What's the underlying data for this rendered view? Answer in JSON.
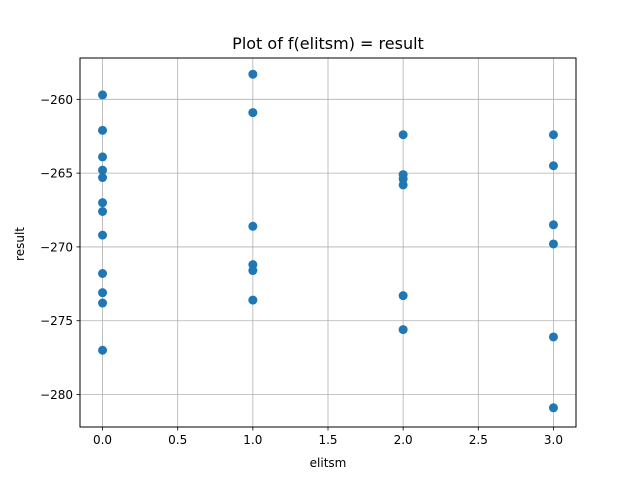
{
  "chart_data": {
    "type": "scatter",
    "title": "Plot of f(elitsm) = result",
    "xlabel": "elitsm",
    "ylabel": "result",
    "xlim": [
      -0.15,
      3.15
    ],
    "ylim": [
      -282.2,
      -257.2
    ],
    "xticks": [
      0.0,
      0.5,
      1.0,
      1.5,
      2.0,
      2.5,
      3.0
    ],
    "xtick_labels": [
      "0.0",
      "0.5",
      "1.0",
      "1.5",
      "2.0",
      "2.5",
      "3.0"
    ],
    "yticks": [
      -260,
      -265,
      -270,
      -275,
      -280
    ],
    "ytick_labels": [
      "−260",
      "−265",
      "−270",
      "−275",
      "−280"
    ],
    "grid": true,
    "marker_color": "#1f77b4",
    "points": [
      {
        "x": 0,
        "y": -259.7
      },
      {
        "x": 0,
        "y": -262.1
      },
      {
        "x": 0,
        "y": -263.9
      },
      {
        "x": 0,
        "y": -264.8
      },
      {
        "x": 0,
        "y": -265.3
      },
      {
        "x": 0,
        "y": -267.0
      },
      {
        "x": 0,
        "y": -267.6
      },
      {
        "x": 0,
        "y": -269.2
      },
      {
        "x": 0,
        "y": -271.8
      },
      {
        "x": 0,
        "y": -273.1
      },
      {
        "x": 0,
        "y": -273.8
      },
      {
        "x": 0,
        "y": -277.0
      },
      {
        "x": 1,
        "y": -258.3
      },
      {
        "x": 1,
        "y": -260.9
      },
      {
        "x": 1,
        "y": -268.6
      },
      {
        "x": 1,
        "y": -271.2
      },
      {
        "x": 1,
        "y": -271.6
      },
      {
        "x": 1,
        "y": -273.6
      },
      {
        "x": 2,
        "y": -262.4
      },
      {
        "x": 2,
        "y": -265.1
      },
      {
        "x": 2,
        "y": -265.4
      },
      {
        "x": 2,
        "y": -265.8
      },
      {
        "x": 2,
        "y": -273.3
      },
      {
        "x": 2,
        "y": -275.6
      },
      {
        "x": 3,
        "y": -262.4
      },
      {
        "x": 3,
        "y": -264.5
      },
      {
        "x": 3,
        "y": -268.5
      },
      {
        "x": 3,
        "y": -269.8
      },
      {
        "x": 3,
        "y": -276.1
      },
      {
        "x": 3,
        "y": -280.9
      }
    ]
  }
}
